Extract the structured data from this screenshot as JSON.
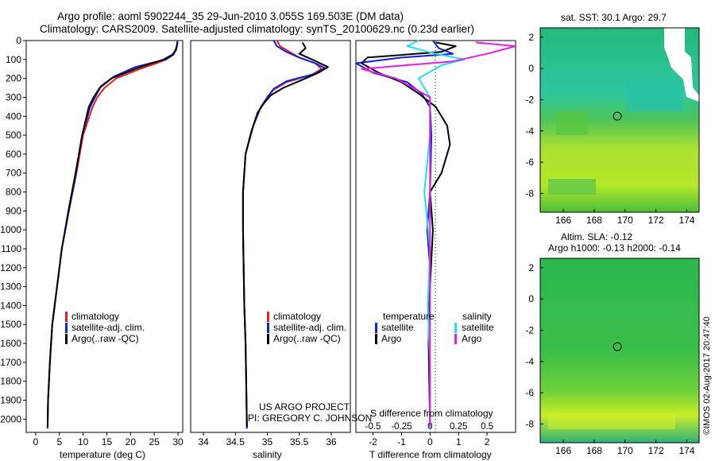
{
  "page": {
    "title_line1": "Argo profile: aoml 5902244_35 29-Jun-2010 3.055S 169.503E (DM data)",
    "title_line2": "Climatology: CARS2009. Satellite-adjusted climatology: synTS_20100629.nc (0.23d earlier)",
    "credit_line1": "US ARGO PROJECT",
    "credit_line2": "PI: GREGORY C. JOHNSON",
    "timestamp": "©IMOS 02-Aug-2017 20:47:40",
    "colors": {
      "red": "#e8201f",
      "blue": "#1020e0",
      "black": "#000000",
      "cyan": "#20e0f0",
      "magenta": "#e020e0"
    }
  },
  "chart_data": [
    {
      "id": "temperature",
      "type": "line",
      "xlabel": "temperature (deg C)",
      "ylabel": "",
      "xlim": [
        -2,
        31
      ],
      "ylim": [
        2070,
        0
      ],
      "xticks": [
        0,
        5,
        10,
        15,
        20,
        25,
        30
      ],
      "xticklabels": [
        "0",
        "5",
        "10",
        "15",
        "20",
        "25",
        "30"
      ],
      "yticks": [
        0,
        100,
        200,
        300,
        400,
        500,
        600,
        700,
        800,
        900,
        1000,
        1100,
        1200,
        1300,
        1400,
        1500,
        1600,
        1700,
        1800,
        1900,
        2000
      ],
      "yticklabels": [
        "0",
        "100",
        "200",
        "300",
        "400",
        "500",
        "600",
        "700",
        "800",
        "900",
        "1000",
        "1100",
        "1200",
        "1300",
        "1400",
        "1500",
        "1600",
        "1700",
        "1800",
        "1900",
        "2000"
      ],
      "legend": [
        "climatology",
        "satellite-adj. clim.",
        "Argo(..raw -QC)"
      ],
      "series": [
        {
          "name": "climatology",
          "color": "#e8201f",
          "x": [
            29.9,
            29.8,
            29.6,
            29.0,
            27.5,
            25.5,
            22.0,
            17.0,
            14.5,
            13.0,
            12.0,
            10.0,
            8.6,
            7.0,
            5.5,
            4.5,
            3.5,
            3.0,
            2.6,
            2.5
          ],
          "y": [
            0,
            25,
            50,
            75,
            100,
            120,
            150,
            200,
            250,
            300,
            350,
            500,
            700,
            900,
            1100,
            1300,
            1500,
            1700,
            1900,
            2050
          ]
        },
        {
          "name": "satellite-adj. clim.",
          "color": "#1020e0",
          "x": [
            29.9,
            29.8,
            29.6,
            29.0,
            27.5,
            25.0,
            21.0,
            16.5,
            13.8,
            12.5,
            11.5,
            9.8,
            8.5,
            7.0,
            5.5,
            4.5,
            3.5,
            3.0,
            2.6,
            2.5
          ],
          "y": [
            0,
            25,
            50,
            75,
            100,
            115,
            140,
            190,
            240,
            300,
            350,
            500,
            700,
            900,
            1100,
            1300,
            1500,
            1700,
            1900,
            2050
          ]
        },
        {
          "name": "Argo(..raw -QC)",
          "color": "#000000",
          "x": [
            29.9,
            29.8,
            29.5,
            28.8,
            27.0,
            24.5,
            21.0,
            16.0,
            13.5,
            12.2,
            11.2,
            9.8,
            8.4,
            6.9,
            5.5,
            4.5,
            3.5,
            3.0,
            2.6,
            2.5
          ],
          "y": [
            10,
            25,
            50,
            75,
            100,
            120,
            150,
            200,
            250,
            300,
            350,
            500,
            700,
            900,
            1100,
            1300,
            1500,
            1700,
            1900,
            2040
          ]
        }
      ]
    },
    {
      "id": "salinity",
      "type": "line",
      "xlabel": "salinity",
      "ylabel": "",
      "xlim": [
        33.8,
        36.3
      ],
      "ylim": [
        2070,
        0
      ],
      "xticks": [
        34,
        34.5,
        35,
        35.5,
        36
      ],
      "xticklabels": [
        "34",
        "34.5",
        "35",
        "35.5",
        "36"
      ],
      "legend": [
        "climatology",
        "satellite-adj. clim.",
        "Argo(..raw -QC)"
      ],
      "series": [
        {
          "name": "climatology",
          "color": "#e8201f",
          "x": [
            35.15,
            35.2,
            35.35,
            35.5,
            35.75,
            35.85,
            35.7,
            35.3,
            35.1,
            35.0,
            34.9,
            34.78,
            34.66,
            34.62,
            34.62,
            34.63,
            34.64,
            34.66,
            34.67,
            34.68
          ],
          "y": [
            0,
            30,
            60,
            90,
            120,
            150,
            180,
            220,
            260,
            300,
            350,
            450,
            600,
            800,
            1000,
            1200,
            1400,
            1600,
            1800,
            2050
          ]
        },
        {
          "name": "satellite-adj. clim.",
          "color": "#1020e0",
          "x": [
            35.1,
            35.15,
            35.3,
            35.5,
            35.75,
            35.9,
            35.75,
            35.3,
            35.1,
            35.0,
            34.9,
            34.78,
            34.66,
            34.62,
            34.62,
            34.63,
            34.64,
            34.66,
            34.67,
            34.68
          ],
          "y": [
            0,
            30,
            60,
            90,
            120,
            145,
            175,
            215,
            255,
            300,
            350,
            450,
            600,
            800,
            1000,
            1200,
            1400,
            1600,
            1800,
            2050
          ]
        },
        {
          "name": "Argo(..raw -QC)",
          "color": "#000000",
          "x": [
            35.55,
            35.6,
            35.5,
            35.7,
            35.95,
            35.8,
            35.6,
            35.25,
            35.05,
            34.95,
            34.85,
            34.75,
            34.66,
            34.62,
            34.62,
            34.63,
            34.64,
            34.66,
            34.67,
            34.68
          ],
          "y": [
            10,
            40,
            70,
            100,
            140,
            170,
            200,
            250,
            290,
            330,
            380,
            480,
            600,
            800,
            1000,
            1200,
            1400,
            1600,
            1800,
            2040
          ]
        }
      ]
    },
    {
      "id": "difference",
      "type": "line",
      "xlabel": "T difference from climatology",
      "xlabel_top": "S difference from climatology",
      "xlim": [
        -2.6,
        3.0
      ],
      "ylim": [
        2070,
        0
      ],
      "xticks": [
        -2,
        -1,
        0,
        1,
        2
      ],
      "xticklabels": [
        "-2",
        "-1",
        "0",
        "1",
        "2"
      ],
      "xticks_salinity": [
        -0.5,
        -0.25,
        0,
        0.25,
        0.5
      ],
      "xticklabels_salinity": [
        "-0.5",
        "-0.25",
        "0",
        "0.25",
        "0.5"
      ],
      "legend": {
        "temperature_header": "temperature",
        "salinity_header": "salinity",
        "items": [
          "satellite",
          "Argo",
          "satellite",
          "Argo"
        ]
      },
      "series": [
        {
          "name": "temperature satellite",
          "color": "#1020e0",
          "x": [
            0.1,
            0.3,
            0.8,
            -1.0,
            -2.6,
            -2.0,
            -0.8,
            -0.3,
            0.0,
            0.05,
            0.0,
            -0.1,
            0.0,
            -0.05,
            0.0,
            0.0
          ],
          "y": [
            0,
            40,
            70,
            90,
            120,
            170,
            220,
            280,
            350,
            500,
            800,
            1000,
            1200,
            1500,
            1800,
            2050
          ]
        },
        {
          "name": "temperature Argo",
          "color": "#000000",
          "x": [
            0.2,
            0.9,
            0.4,
            -2.2,
            -2.4,
            -1.8,
            -1.0,
            -0.4,
            0.2,
            0.6,
            0.7,
            0.4,
            0.0,
            0.1,
            0.0,
            -0.05,
            0.0
          ],
          "y": [
            10,
            30,
            60,
            90,
            120,
            170,
            220,
            280,
            350,
            450,
            550,
            700,
            800,
            1000,
            1300,
            1600,
            2040
          ]
        },
        {
          "name": "salinity satellite",
          "color": "#20e0f0",
          "x": [
            -0.1,
            -0.2,
            0.05,
            0.3,
            0.1,
            -0.1,
            0.0,
            0.0,
            -0.05,
            0.0,
            -0.02,
            0.0,
            0.0
          ],
          "y": [
            0,
            30,
            70,
            100,
            130,
            200,
            300,
            500,
            800,
            1100,
            1400,
            1700,
            2050
          ]
        },
        {
          "name": "salinity Argo",
          "color": "#e020e0",
          "x": [
            0.4,
            0.75,
            0.5,
            0.2,
            -0.6,
            -0.3,
            0.0,
            0.0,
            0.0,
            0.0,
            0.0
          ],
          "y": [
            10,
            30,
            70,
            110,
            150,
            200,
            300,
            500,
            1000,
            1500,
            2040
          ]
        }
      ]
    },
    {
      "id": "sst_map",
      "type": "heatmap",
      "title": "sat. SST: 30.1  Argo: 29.7",
      "xlim": [
        164.5,
        174.8
      ],
      "ylim": [
        -9.2,
        2.6
      ],
      "xticks": [
        166,
        168,
        170,
        172,
        174
      ],
      "xticklabels": [
        "166",
        "168",
        "170",
        "172",
        "174"
      ],
      "yticks": [
        2,
        0,
        -2,
        -4,
        -6,
        -8
      ],
      "yticklabels": [
        "2",
        "0",
        "-2",
        "-4",
        "-6",
        "-8"
      ],
      "marker": {
        "lon": 169.5,
        "lat": -3.05
      }
    },
    {
      "id": "sla_map",
      "type": "heatmap",
      "title_line1": "Altim. SLA: -0.12",
      "title_line2": "Argo h1000: -0.13  h2000: -0.14",
      "xlim": [
        164.5,
        174.8
      ],
      "ylim": [
        -9.2,
        2.6
      ],
      "xticks": [
        166,
        168,
        170,
        172,
        174
      ],
      "xticklabels": [
        "166",
        "168",
        "170",
        "172",
        "174"
      ],
      "yticks": [
        2,
        0,
        -2,
        -4,
        -6,
        -8
      ],
      "yticklabels": [
        "2",
        "0",
        "-2",
        "-4",
        "-6",
        "-8"
      ],
      "marker": {
        "lon": 169.5,
        "lat": -3.05
      }
    }
  ]
}
